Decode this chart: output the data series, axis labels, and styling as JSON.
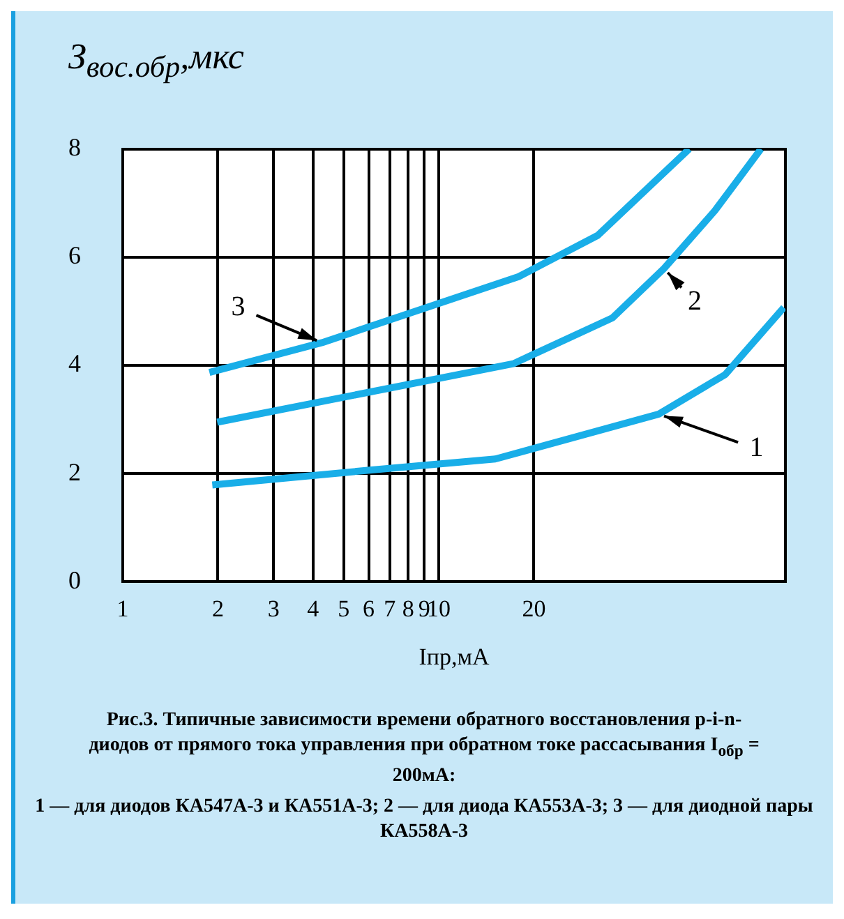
{
  "chart_data": {
    "type": "line",
    "title": "Рис.3. Типичные зависимости времени обратного восстановления p-i-n-диодов от прямого тока управления при обратном токе рассасывания I$_{обр}$ = 200мА:",
    "annotations": [
      "1 — для диодов КА547А-3 и КА551А-3; 2 — для диода КА553А-3; 3 — для диодной пары КА558А-3"
    ],
    "xlabel": "Iпр,мА",
    "ylabel": "З$_{вос.обр}$,мкс",
    "log": "x",
    "xlim": [
      1,
      125
    ],
    "xticks": [
      1,
      2,
      3,
      4,
      5,
      6,
      7,
      8,
      9,
      10,
      20
    ],
    "ylim": [
      0,
      8
    ],
    "yticks": [
      0,
      2,
      4,
      6,
      8
    ],
    "grid": true,
    "legend": false,
    "marker": "none",
    "line_style": "solid",
    "series": [
      {
        "name": "1",
        "color": "#19aee8",
        "x": [
          1.92,
          5.96,
          15.1,
          49.7,
          80.6,
          123.6
        ],
        "values": [
          1.79,
          2.06,
          2.27,
          3.1,
          3.83,
          5.07
        ]
      },
      {
        "name": "2",
        "color": "#19aee8",
        "x": [
          1.99,
          17.2,
          35.5,
          51.6,
          74.8,
          104.6
        ],
        "values": [
          2.95,
          4.03,
          4.88,
          5.79,
          6.86,
          8.0
        ]
      },
      {
        "name": "3",
        "color": "#19aee8",
        "x": [
          1.88,
          4.27,
          17.9,
          31.8,
          62
        ],
        "values": [
          3.87,
          4.42,
          5.64,
          6.4,
          8.0
        ]
      }
    ]
  }
}
